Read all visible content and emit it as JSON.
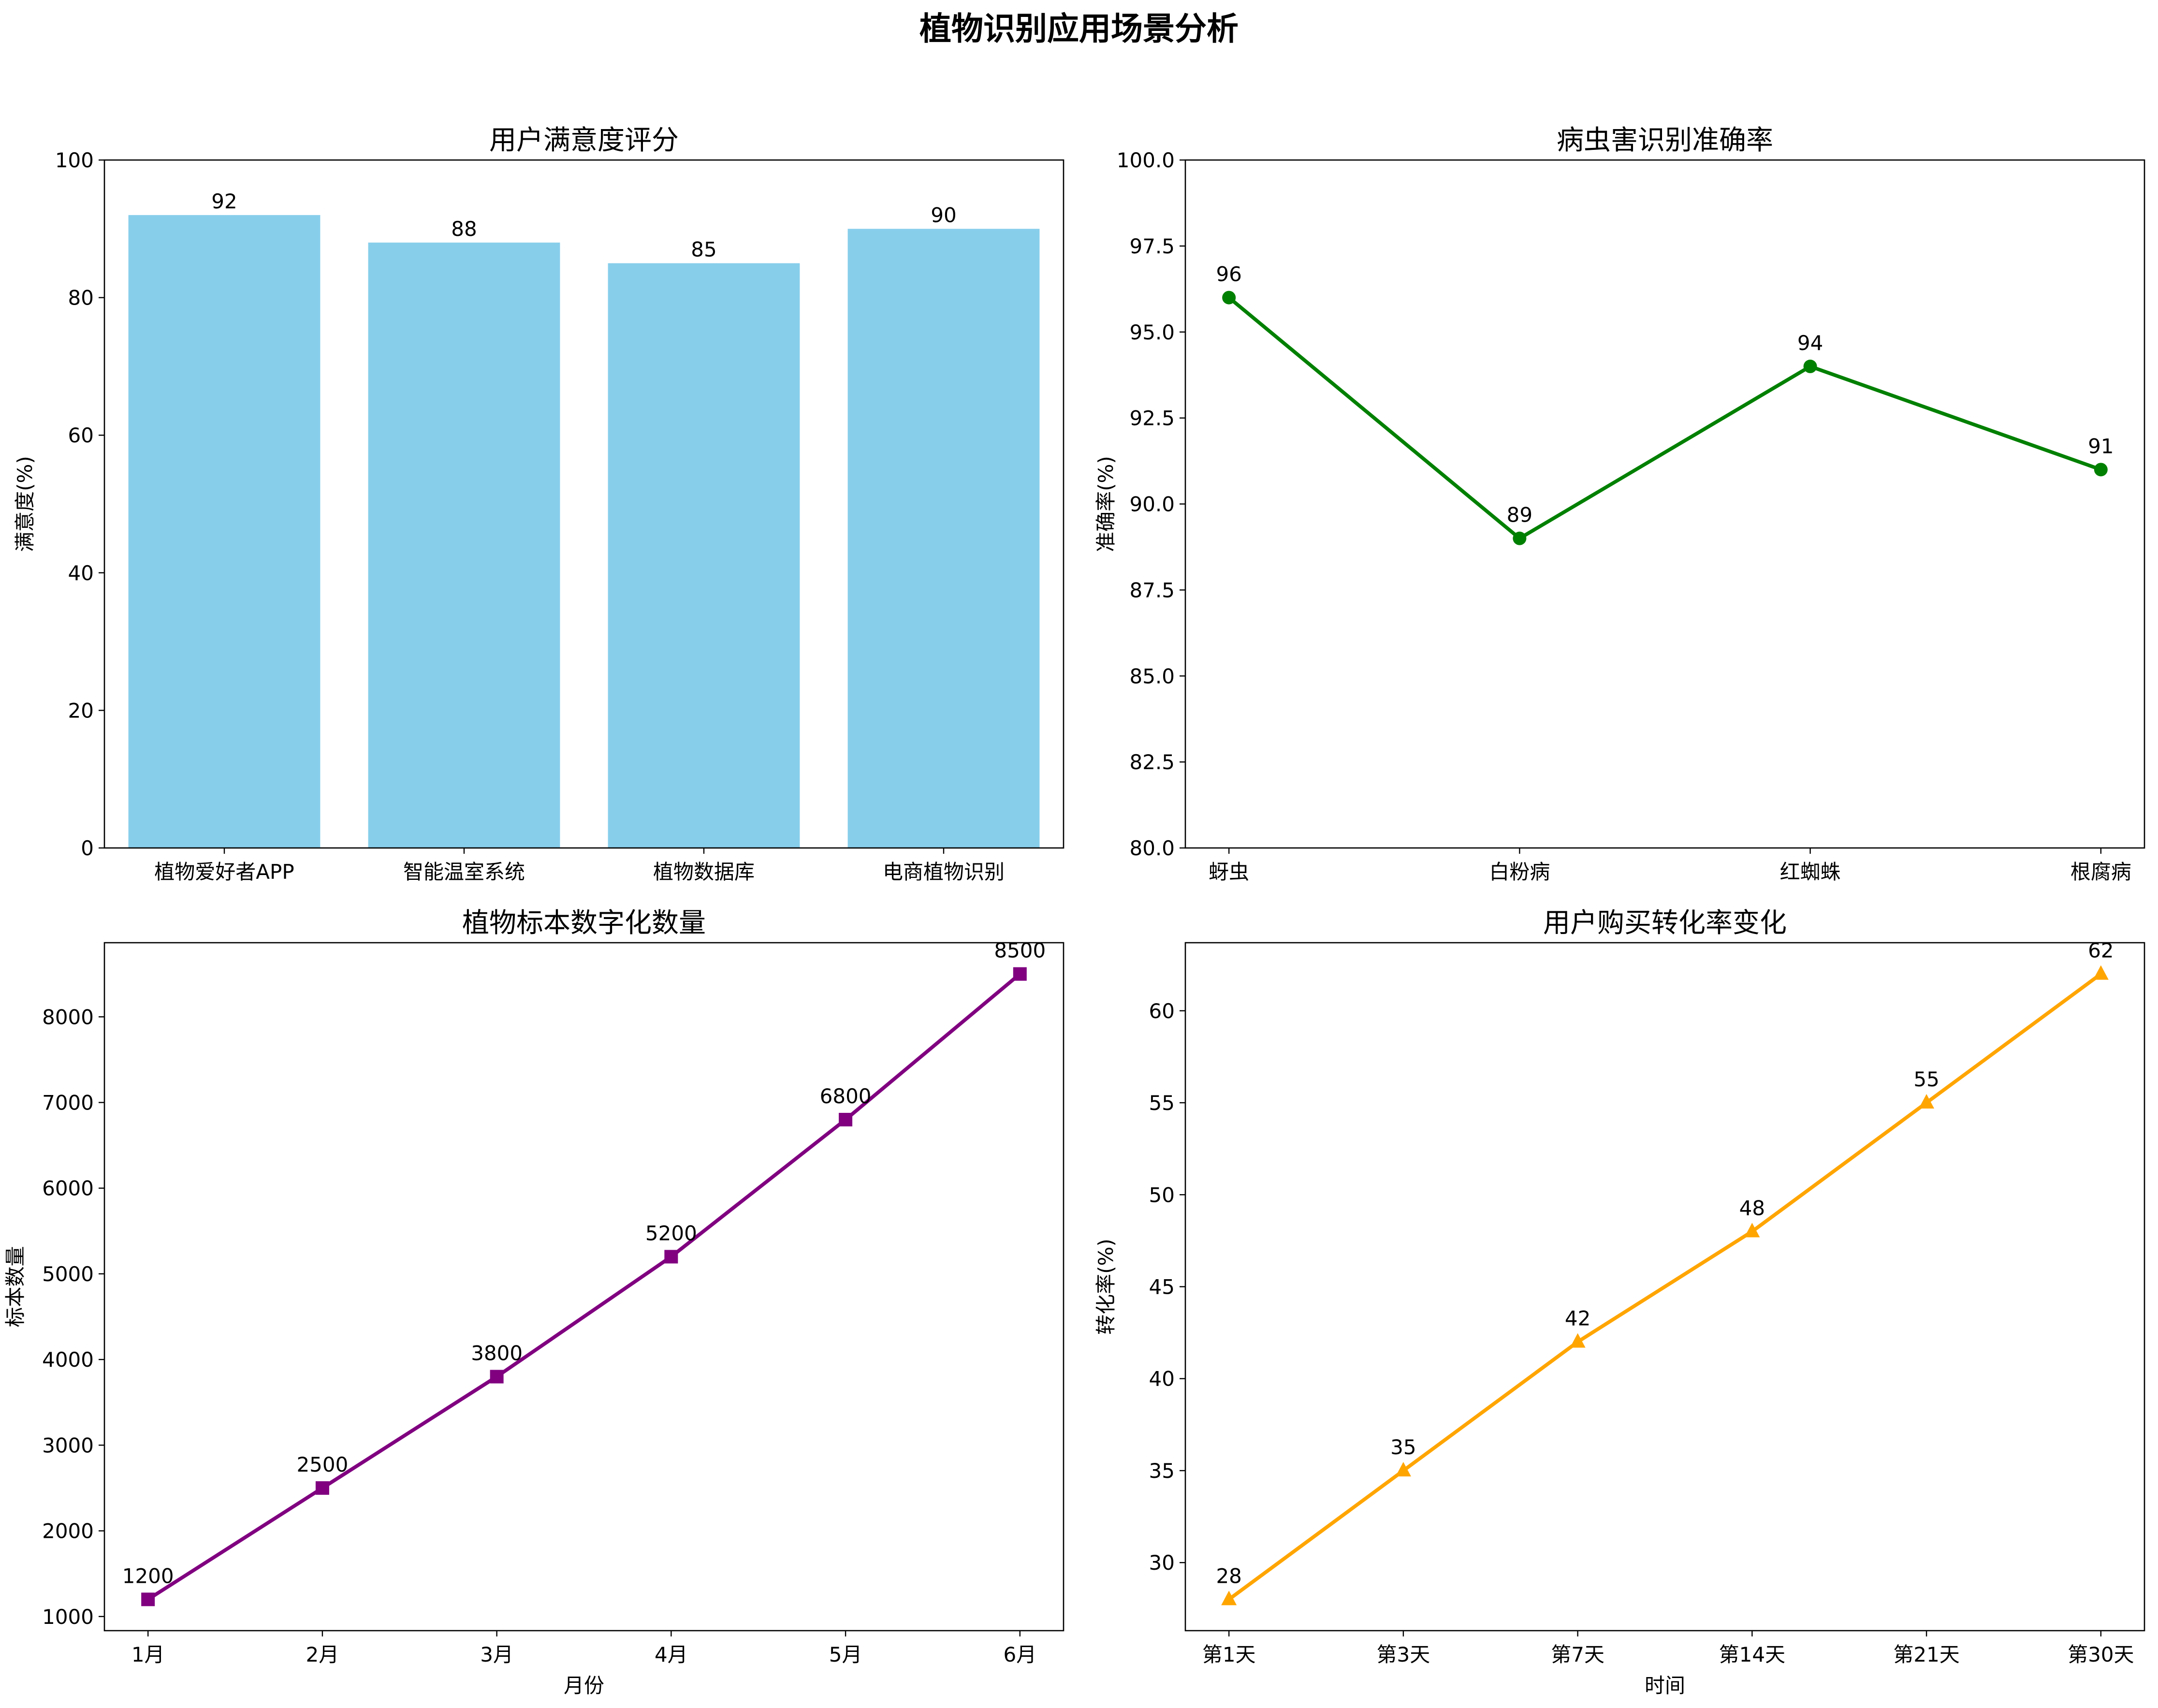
{
  "figure": {
    "title": "植物识别应用场景分析"
  },
  "chart_data": [
    {
      "type": "bar",
      "title": "用户满意度评分",
      "xlabel": "",
      "ylabel": "满意度(%)",
      "categories": [
        "植物爱好者APP",
        "智能温室系统",
        "植物数据库",
        "电商植物识别"
      ],
      "values": [
        92,
        88,
        85,
        90
      ],
      "ylim": [
        0,
        100
      ],
      "yticks": [
        0,
        20,
        40,
        60,
        80,
        100
      ],
      "color": "#87ceeb",
      "data_labels": [
        "92",
        "88",
        "85",
        "90"
      ],
      "grid": false
    },
    {
      "type": "line",
      "title": "病虫害识别准确率",
      "xlabel": "",
      "ylabel": "准确率(%)",
      "categories": [
        "蚜虫",
        "白粉病",
        "红蜘蛛",
        "根腐病"
      ],
      "values": [
        96,
        89,
        94,
        91
      ],
      "ylim": [
        80,
        100
      ],
      "yticks": [
        "80.0",
        "82.5",
        "85.0",
        "87.5",
        "90.0",
        "92.5",
        "95.0",
        "97.5",
        "100.0"
      ],
      "color": "#008000",
      "marker": "circle",
      "data_labels": [
        "96",
        "89",
        "94",
        "91"
      ],
      "grid": false
    },
    {
      "type": "line",
      "title": "植物标本数字化数量",
      "xlabel": "月份",
      "ylabel": "标本数量",
      "categories": [
        "1月",
        "2月",
        "3月",
        "4月",
        "5月",
        "6月"
      ],
      "values": [
        1200,
        2500,
        3800,
        5200,
        6800,
        8500
      ],
      "ylim": [
        835,
        8865
      ],
      "yticks": [
        1000,
        2000,
        3000,
        4000,
        5000,
        6000,
        7000,
        8000
      ],
      "color": "#800080",
      "marker": "square",
      "data_labels": [
        "1200",
        "2500",
        "3800",
        "5200",
        "6800",
        "8500"
      ],
      "grid": false
    },
    {
      "type": "line",
      "title": "用户购买转化率变化",
      "xlabel": "时间",
      "ylabel": "转化率(%)",
      "categories": [
        "第1天",
        "第3天",
        "第7天",
        "第14天",
        "第21天",
        "第30天"
      ],
      "values": [
        28,
        35,
        42,
        48,
        55,
        62
      ],
      "ylim": [
        26.3,
        63.7
      ],
      "yticks": [
        30,
        35,
        40,
        45,
        50,
        55,
        60
      ],
      "color": "#ffa500",
      "marker": "triangle",
      "data_labels": [
        "28",
        "35",
        "42",
        "48",
        "55",
        "62"
      ],
      "grid": false
    }
  ]
}
